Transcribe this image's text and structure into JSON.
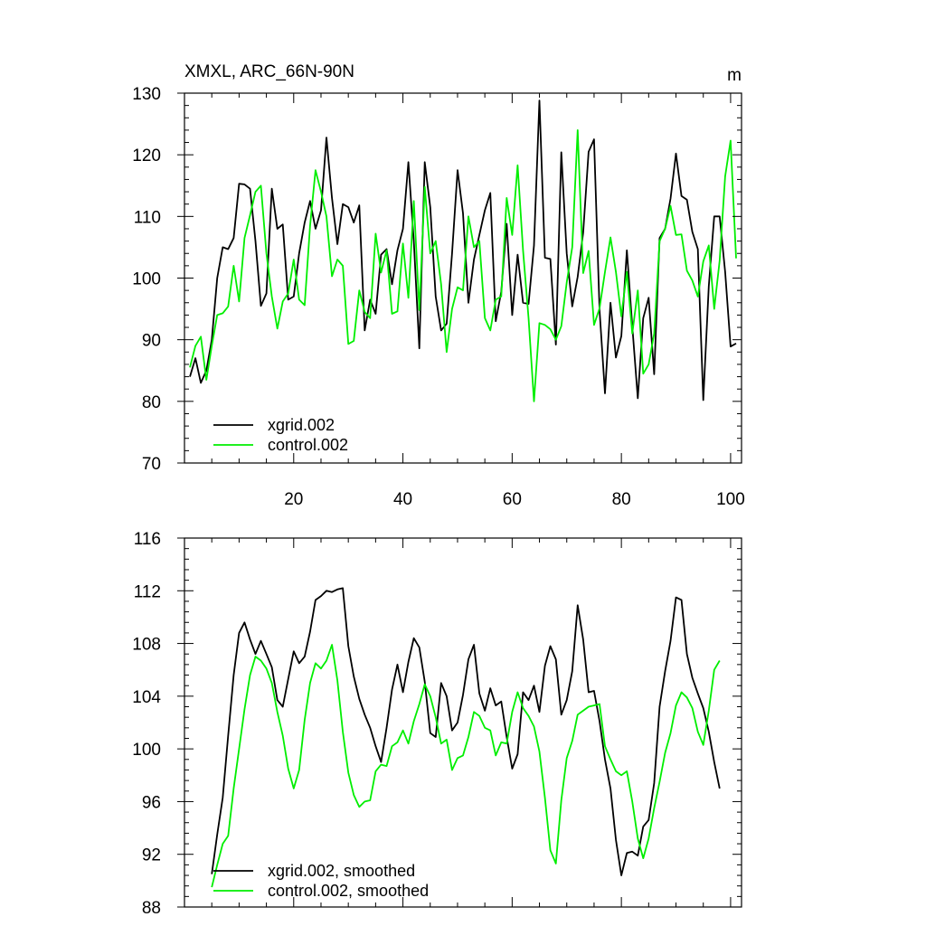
{
  "colors": {
    "xgrid": "#000000",
    "control": "#00ee00",
    "axis": "#000000",
    "background": "#ffffff"
  },
  "chart_data": [
    {
      "type": "line",
      "title": "XMXL, ARC_66N-90N",
      "units": "m",
      "xlim": [
        0,
        102
      ],
      "ylim": [
        70,
        130
      ],
      "x_ticks": [
        20,
        40,
        60,
        80,
        100
      ],
      "y_ticks": [
        70,
        80,
        90,
        100,
        110,
        120,
        130
      ],
      "grid": false,
      "legend_position": "bottom-left",
      "series": [
        {
          "name": "xgrid.002",
          "color": "#000000",
          "x": [
            1,
            2,
            3,
            4,
            5,
            6,
            7,
            8,
            9,
            10,
            11,
            12,
            13,
            14,
            15,
            16,
            17,
            18,
            19,
            20,
            21,
            22,
            23,
            24,
            25,
            26,
            27,
            28,
            29,
            30,
            31,
            32,
            33,
            34,
            35,
            36,
            37,
            38,
            39,
            40,
            41,
            42,
            43,
            44,
            45,
            46,
            47,
            48,
            49,
            50,
            51,
            52,
            53,
            54,
            55,
            56,
            57,
            58,
            59,
            60,
            61,
            62,
            63,
            64,
            65,
            66,
            67,
            68,
            69,
            70,
            71,
            72,
            73,
            74,
            75,
            76,
            77,
            78,
            79,
            80,
            81,
            82,
            83,
            84,
            85,
            86,
            87,
            88,
            89,
            90,
            91,
            92,
            93,
            94,
            95,
            96,
            97,
            98,
            99,
            100,
            101
          ],
          "y": [
            84,
            87,
            83,
            85,
            90,
            100,
            105,
            104.7,
            106.5,
            115.3,
            115.2,
            114.5,
            106,
            95.5,
            97.5,
            114.5,
            108,
            108.7,
            96.5,
            97,
            104,
            109,
            112.5,
            108,
            111,
            122.8,
            113,
            105.5,
            112,
            111.5,
            109,
            111.8,
            91.5,
            96.5,
            94.2,
            103.8,
            104.7,
            99,
            104.5,
            108,
            118.8,
            106,
            88.6,
            118.8,
            111.5,
            97,
            91.5,
            92.6,
            104,
            117.5,
            110.5,
            96,
            103,
            107,
            111,
            113.8,
            93,
            97.8,
            108.8,
            94,
            103.8,
            96,
            95.8,
            105.3,
            128.8,
            103.3,
            103.1,
            89.2,
            120.4,
            104,
            95.4,
            100.2,
            107.4,
            120.5,
            122.5,
            94.8,
            81.3,
            96,
            87.1,
            90.6,
            104.5,
            92.2,
            80.5,
            93.5,
            96.8,
            84.4,
            106.5,
            108,
            112.9,
            120.2,
            113.3,
            112.7,
            107.5,
            104.7,
            80.2,
            98.7,
            110,
            110,
            101,
            88.9,
            89.4
          ]
        },
        {
          "name": "control.002",
          "color": "#00ee00",
          "x": [
            1,
            2,
            3,
            4,
            5,
            6,
            7,
            8,
            9,
            10,
            11,
            12,
            13,
            14,
            15,
            16,
            17,
            18,
            19,
            20,
            21,
            22,
            23,
            24,
            25,
            26,
            27,
            28,
            29,
            30,
            31,
            32,
            33,
            34,
            35,
            36,
            37,
            38,
            39,
            40,
            41,
            42,
            43,
            44,
            45,
            46,
            47,
            48,
            49,
            50,
            51,
            52,
            53,
            54,
            55,
            56,
            57,
            58,
            59,
            60,
            61,
            62,
            63,
            64,
            65,
            66,
            67,
            68,
            69,
            70,
            71,
            72,
            73,
            74,
            75,
            76,
            77,
            78,
            79,
            80,
            81,
            82,
            83,
            84,
            85,
            86,
            87,
            88,
            89,
            90,
            91,
            92,
            93,
            94,
            95,
            96,
            97,
            98,
            99,
            100,
            101
          ],
          "y": [
            85.5,
            89,
            90.5,
            83.5,
            89,
            94,
            94.3,
            95.4,
            102,
            96.2,
            106.5,
            110.2,
            114,
            115,
            104,
            97,
            91.8,
            96.2,
            97.5,
            103,
            96.5,
            95.6,
            108.5,
            117.5,
            114,
            110,
            100.3,
            103,
            102,
            89.3,
            89.8,
            98,
            94.5,
            93.5,
            107.2,
            100.9,
            104.5,
            94.2,
            94.6,
            105.6,
            96.8,
            112.5,
            94.8,
            114.8,
            104,
            106,
            99,
            88,
            95,
            98.5,
            98,
            110,
            105,
            106,
            93.5,
            91.5,
            96.5,
            97,
            113,
            107,
            118.3,
            104.5,
            93.5,
            80,
            92.7,
            92.4,
            91.7,
            90,
            92.2,
            99.3,
            105,
            124,
            100.8,
            104.4,
            92.4,
            95.1,
            101,
            106.6,
            101,
            93.8,
            101,
            91,
            98,
            84.5,
            86,
            91,
            106,
            108,
            111.7,
            107,
            107.1,
            101.2,
            99.6,
            97,
            102.7,
            105.3,
            95,
            102.8,
            116.5,
            122.3,
            103.2
          ]
        }
      ]
    },
    {
      "type": "line",
      "xlim": [
        0,
        102
      ],
      "ylim": [
        88,
        116
      ],
      "x_ticks": [
        20,
        40,
        60,
        80,
        100
      ],
      "y_ticks": [
        88,
        92,
        96,
        100,
        104,
        108,
        112,
        116
      ],
      "grid": false,
      "legend_position": "bottom-left",
      "series": [
        {
          "name": "xgrid.002, smoothed",
          "color": "#000000",
          "x": [
            5,
            6,
            7,
            8,
            9,
            10,
            11,
            12,
            13,
            14,
            15,
            16,
            17,
            18,
            19,
            20,
            21,
            22,
            23,
            24,
            25,
            26,
            27,
            28,
            29,
            30,
            31,
            32,
            33,
            34,
            35,
            36,
            37,
            38,
            39,
            40,
            41,
            42,
            43,
            44,
            45,
            46,
            47,
            48,
            49,
            50,
            51,
            52,
            53,
            54,
            55,
            56,
            57,
            58,
            59,
            60,
            61,
            62,
            63,
            64,
            65,
            66,
            67,
            68,
            69,
            70,
            71,
            72,
            73,
            74,
            75,
            76,
            77,
            78,
            79,
            80,
            81,
            82,
            83,
            84,
            85,
            86,
            87,
            88,
            89,
            90,
            91,
            92,
            93,
            94,
            95,
            96,
            97,
            98
          ],
          "y": [
            90.5,
            93.5,
            96.3,
            101,
            105.6,
            108.8,
            109.6,
            108.3,
            107.2,
            108.2,
            107.2,
            106.2,
            103.7,
            103.2,
            105.3,
            107.4,
            106.5,
            107,
            108.9,
            111.3,
            111.6,
            112,
            111.9,
            112.1,
            112.2,
            107.8,
            105.5,
            103.8,
            102.6,
            101.6,
            100.2,
            99,
            101.6,
            104.5,
            106.4,
            104.3,
            106.6,
            108.4,
            107.7,
            105.1,
            101.2,
            100.9,
            105,
            104,
            101.4,
            102,
            104.1,
            106.8,
            107.9,
            104.2,
            102.9,
            104.6,
            103.3,
            103.6,
            100.9,
            98.5,
            99.6,
            104.3,
            103.7,
            104.8,
            102.8,
            106.3,
            107.8,
            106.8,
            102.6,
            103.7,
            105.9,
            110.9,
            108.3,
            104.3,
            104.4,
            102.1,
            99.2,
            97,
            93.1,
            90.4,
            92.1,
            92.2,
            91.9,
            94.1,
            94.6,
            97.4,
            103.2,
            105.9,
            108.2,
            111.5,
            111.3,
            107.2,
            105.4,
            104.2,
            103.1,
            101.3,
            99,
            97
          ]
        },
        {
          "name": "control.002, smoothed",
          "color": "#00ee00",
          "x": [
            5,
            6,
            7,
            8,
            9,
            10,
            11,
            12,
            13,
            14,
            15,
            16,
            17,
            18,
            19,
            20,
            21,
            22,
            23,
            24,
            25,
            26,
            27,
            28,
            29,
            30,
            31,
            32,
            33,
            34,
            35,
            36,
            37,
            38,
            39,
            40,
            41,
            42,
            43,
            44,
            45,
            46,
            47,
            48,
            49,
            50,
            51,
            52,
            53,
            54,
            55,
            56,
            57,
            58,
            59,
            60,
            61,
            62,
            63,
            64,
            65,
            66,
            67,
            68,
            69,
            70,
            71,
            72,
            73,
            74,
            75,
            76,
            77,
            78,
            79,
            80,
            81,
            82,
            83,
            84,
            85,
            86,
            87,
            88,
            89,
            90,
            91,
            92,
            93,
            94,
            95,
            96,
            97,
            98
          ],
          "y": [
            89.5,
            91.2,
            92.8,
            93.4,
            97,
            100,
            103,
            105.6,
            107,
            106.7,
            106.1,
            105,
            102.8,
            101,
            98.5,
            97,
            98.4,
            102.2,
            105,
            106.5,
            106.1,
            106.7,
            107.9,
            105.2,
            101.3,
            98.2,
            96.5,
            95.6,
            96,
            96.1,
            98.3,
            98.8,
            98.7,
            100.2,
            100.5,
            101.4,
            100.4,
            102.1,
            103.4,
            104.9,
            104,
            102.4,
            100.4,
            100.7,
            98.4,
            99.3,
            99.5,
            100.9,
            102.8,
            102.5,
            101.6,
            101.4,
            99.5,
            100.5,
            100.4,
            102.8,
            104.3,
            103.1,
            102.5,
            101.7,
            99.8,
            96.3,
            92.3,
            91.3,
            96.1,
            99.3,
            100.6,
            102.6,
            102.9,
            103.2,
            103.3,
            103.4,
            100.2,
            99.2,
            98.3,
            98,
            98.3,
            96,
            93.2,
            91.7,
            93.2,
            95.5,
            97.5,
            99.7,
            101.2,
            103.3,
            104.3,
            103.9,
            103.1,
            101.3,
            100.3,
            102.9,
            106,
            106.7
          ]
        }
      ]
    }
  ]
}
